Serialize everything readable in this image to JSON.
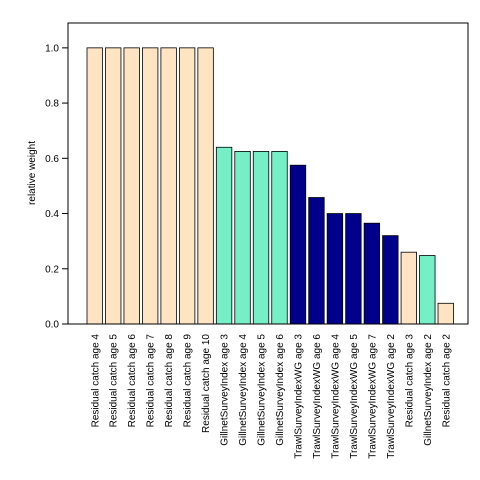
{
  "chart_data": {
    "type": "bar",
    "title": "",
    "xlabel": "",
    "ylabel": "relative weight",
    "ylim": [
      0,
      1.09
    ],
    "yticks": [
      0.0,
      0.2,
      0.4,
      0.6,
      0.8,
      1.0
    ],
    "ytick_labels": [
      "0.0",
      "0.2",
      "0.4",
      "0.6",
      "0.8",
      "1.0"
    ],
    "grid": false,
    "legend": "none",
    "colors": {
      "residual": "#FFE4C4",
      "gillnet": "#76EEC6",
      "trawl": "#00008B",
      "outline": "#000000"
    },
    "categories": [
      "Residual catch age 4",
      "Residual catch age 5",
      "Residual catch age 6",
      "Residual catch age 7",
      "Residual catch age 8",
      "Residual catch age 9",
      "Residual catch age 10",
      "GillnetSurveyIndex age 3",
      "GillnetSurveyIndex age 4",
      "GillnetSurveyIndex age 5",
      "GillnetSurveyIndex age 6",
      "TrawlSurveyIndexWG age 3",
      "TrawlSurveyIndexWG age 6",
      "TrawlSurveyIndexWG age 4",
      "TrawlSurveyIndexWG age 5",
      "TrawlSurveyIndexWG age 7",
      "TrawlSurveyIndexWG age 2",
      "Residual catch age 3",
      "GillnetSurveyIndex age 2",
      "Residual catch age 2"
    ],
    "values": [
      1.0,
      1.0,
      1.0,
      1.0,
      1.0,
      1.0,
      1.0,
      0.64,
      0.625,
      0.625,
      0.625,
      0.575,
      0.458,
      0.4,
      0.4,
      0.365,
      0.32,
      0.26,
      0.248,
      0.075
    ],
    "groups": [
      "residual",
      "residual",
      "residual",
      "residual",
      "residual",
      "residual",
      "residual",
      "gillnet",
      "gillnet",
      "gillnet",
      "gillnet",
      "trawl",
      "trawl",
      "trawl",
      "trawl",
      "trawl",
      "trawl",
      "residual",
      "gillnet",
      "residual"
    ]
  }
}
